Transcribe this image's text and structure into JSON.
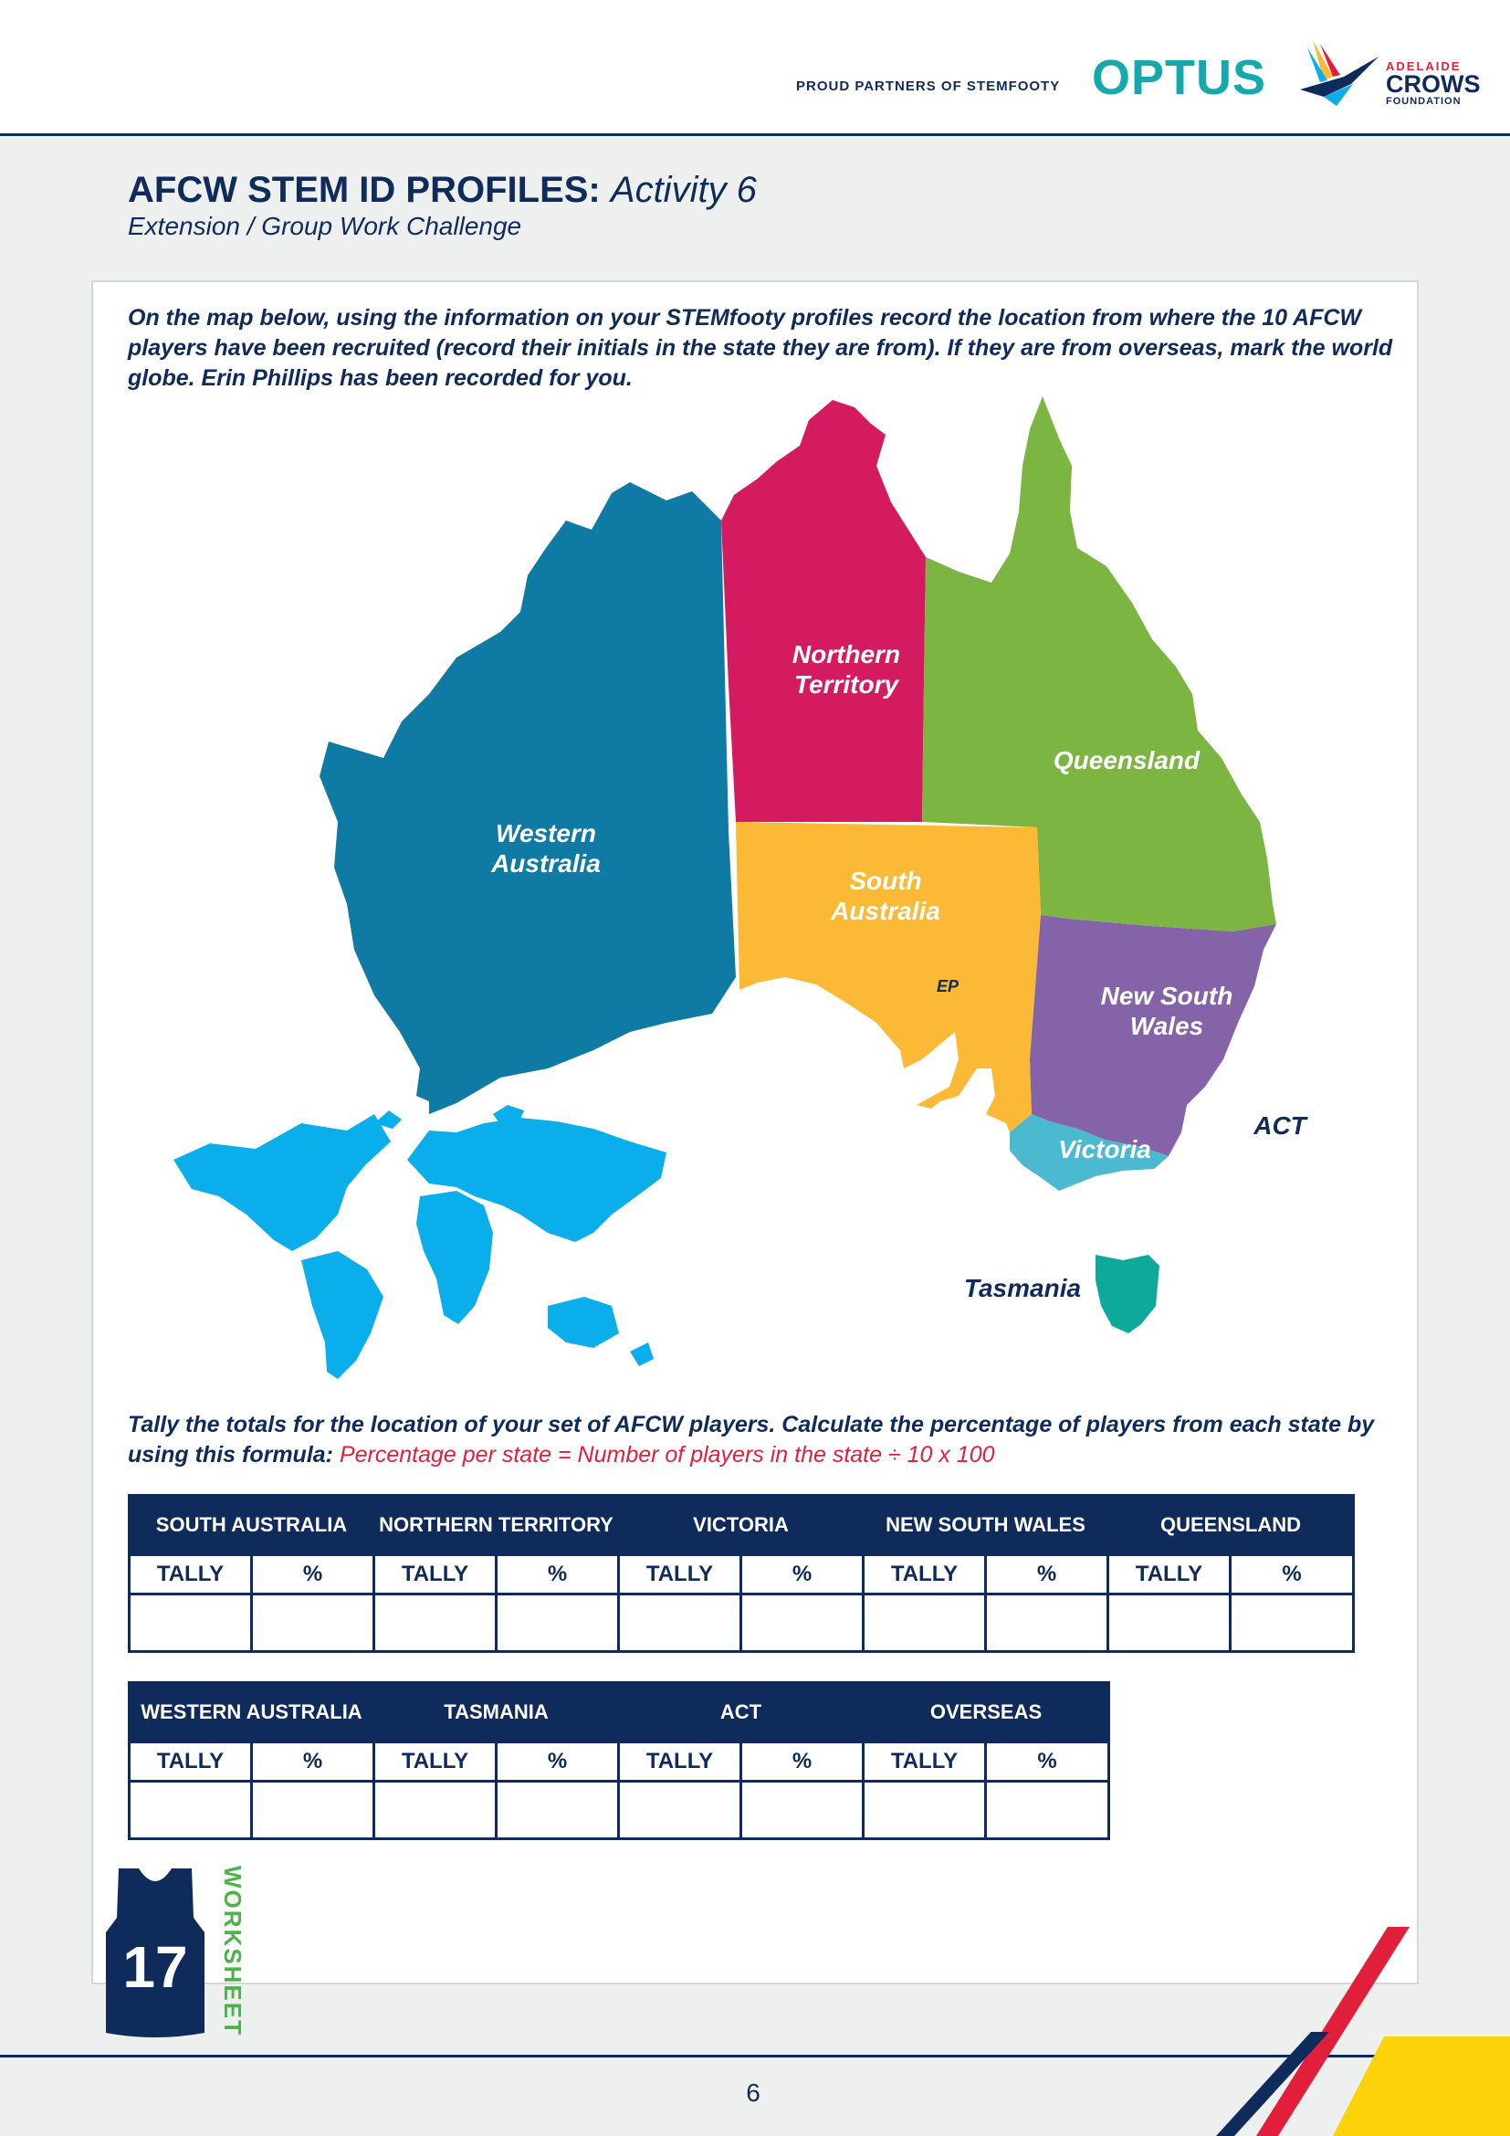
{
  "header": {
    "partners_text": "PROUD PARTNERS OF STEMFOOTY",
    "optus_logo": "OPTUS",
    "crows_logo": {
      "line1": "ADELAIDE",
      "line2": "CROWS",
      "line3": "FOUNDATION"
    }
  },
  "title": {
    "main": "AFCW STEM ID PROFILES:",
    "activity": "Activity 6"
  },
  "subtitle": "Extension / Group Work Challenge",
  "instructions": "On the map below, using the information on your STEMfooty profiles record the location from where the 10 AFCW players have been recruited (record their initials in the state they are from). If they are from overseas, mark the world globe. Erin Phillips has been recorded for you.",
  "map": {
    "states": {
      "wa": "Western Australia",
      "nt": "Northern Territory",
      "qld": "Queensland",
      "sa": "South Australia",
      "nsw": "New South Wales",
      "vic": "Victoria",
      "tas": "Tasmania",
      "act": "ACT"
    },
    "sample_initials": "EP",
    "colors": {
      "wa": "#0f7aa3",
      "nt": "#d51b60",
      "qld": "#7db542",
      "sa": "#fbb936",
      "nsw": "#8463a8",
      "vic": "#4bb9d0",
      "tas": "#0fa99a",
      "world": "#0aaeea"
    }
  },
  "tally": {
    "text": "Tally the totals for the location of your set of AFCW players. Calculate the percentage of players from each state by using this formula:",
    "formula": "Percentage per state = Number of players in the state ÷ 10 x 100",
    "tally_label": "TALLY",
    "percent_label": "%",
    "table1": [
      "SOUTH AUSTRALIA",
      "NORTHERN TERRITORY",
      "VICTORIA",
      "NEW SOUTH WALES",
      "QUEENSLAND"
    ],
    "table2": [
      "WESTERN AUSTRALIA",
      "TASMANIA",
      "ACT",
      "OVERSEAS"
    ]
  },
  "footer": {
    "jersey_number": "17",
    "worksheet": "WORKSHEET",
    "page_number": "6"
  }
}
